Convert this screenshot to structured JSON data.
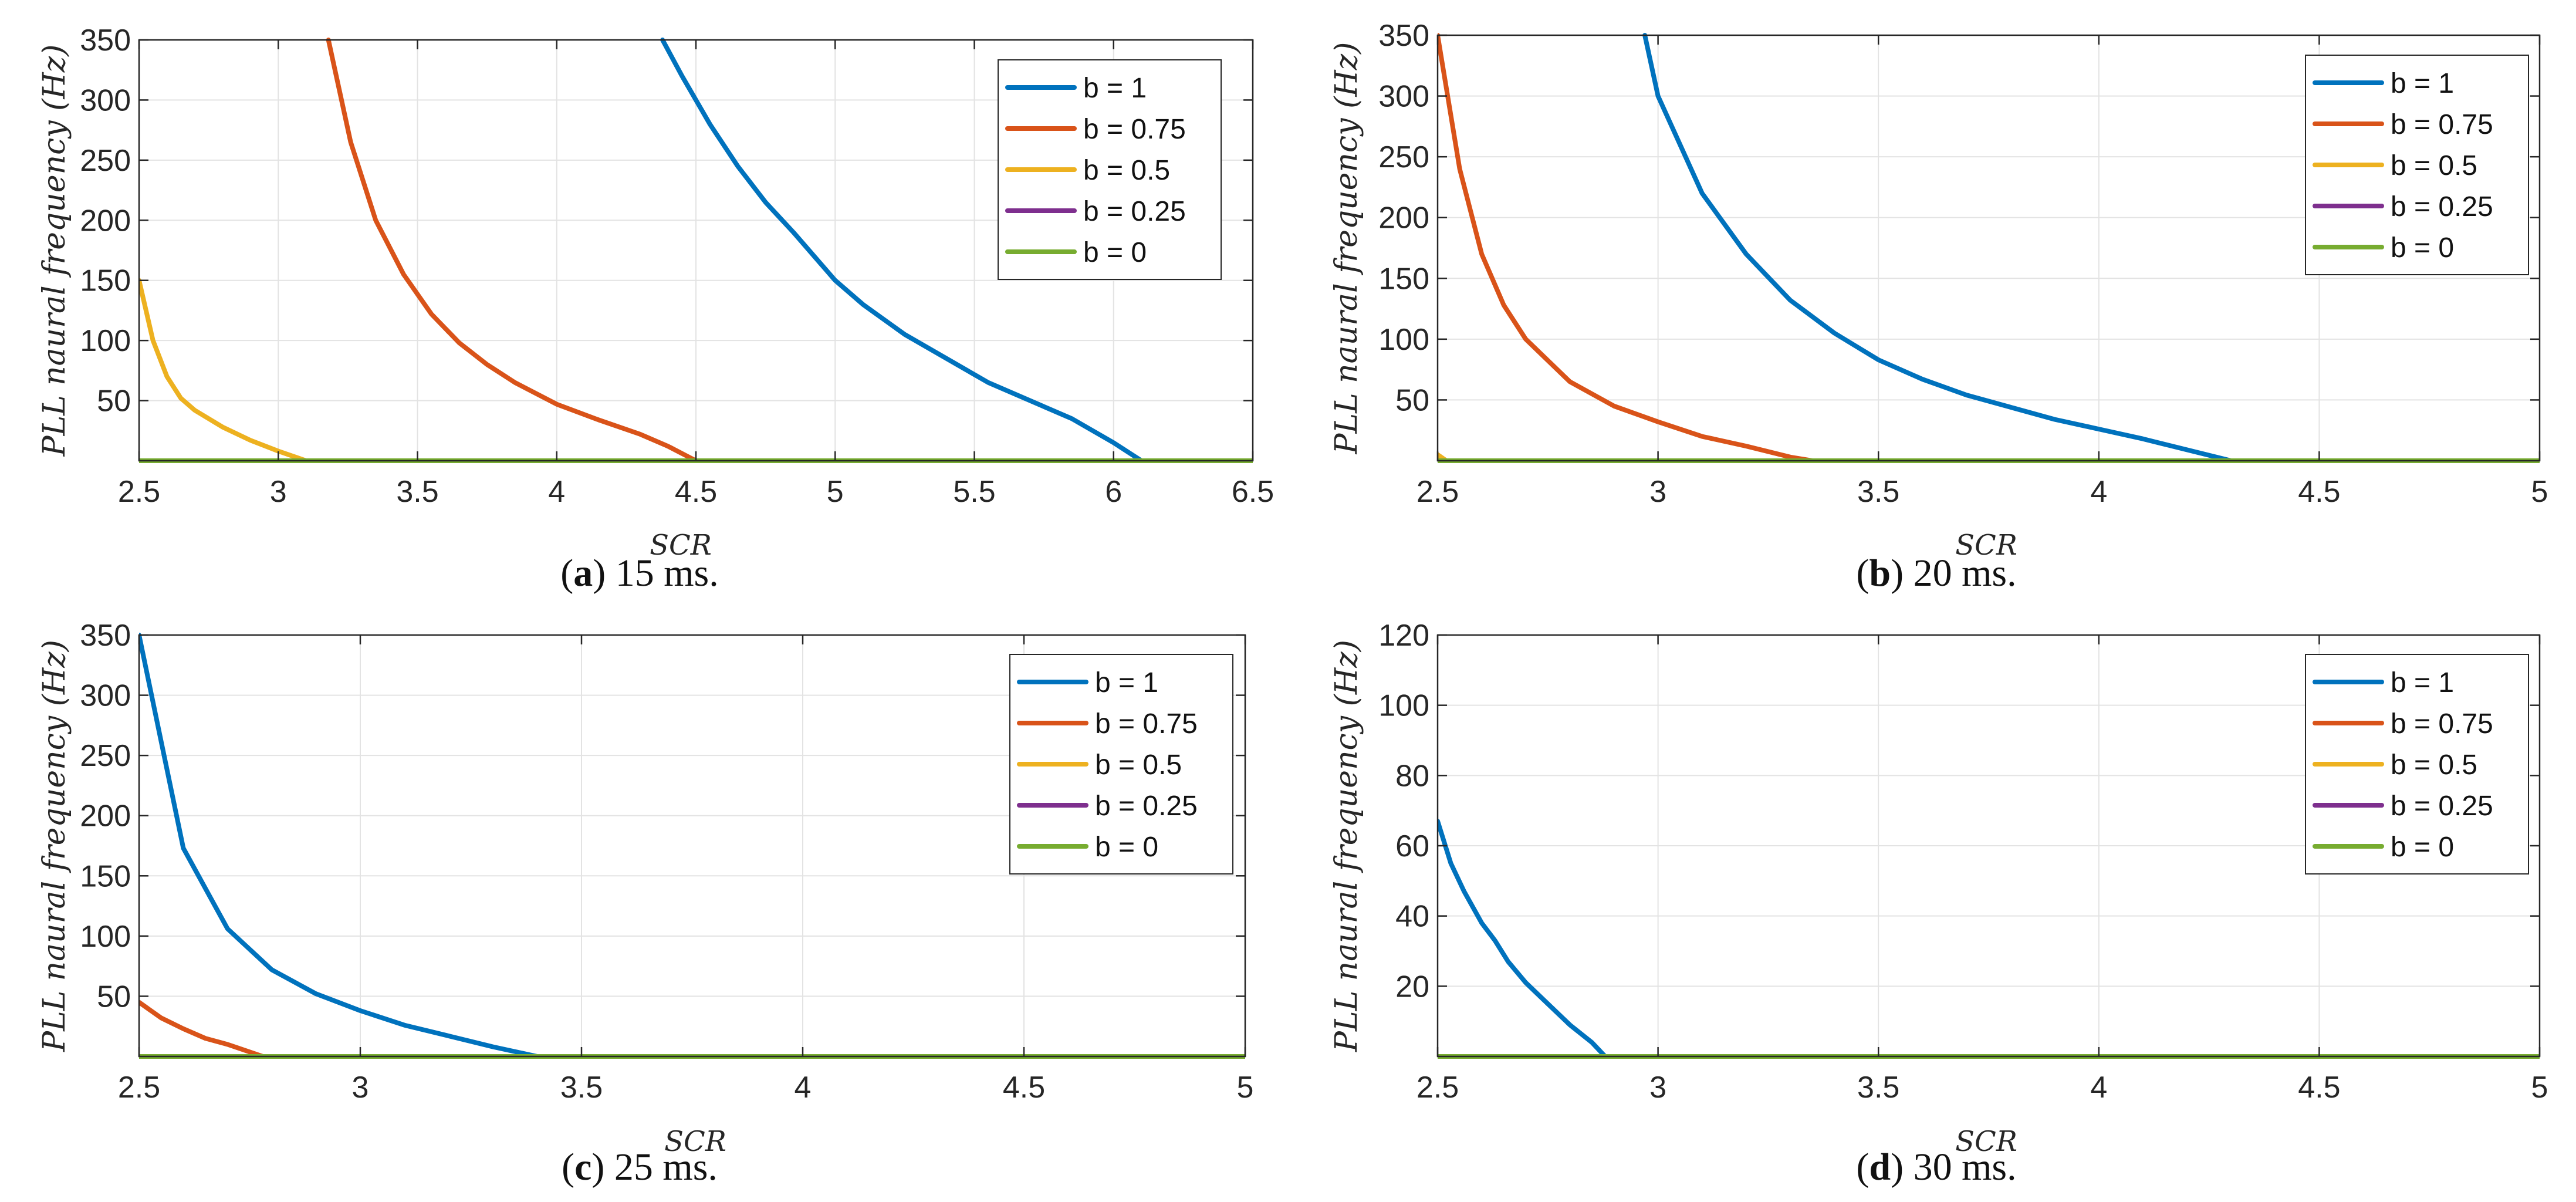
{
  "colors": {
    "b=1": "#0072BD",
    "b=0.75": "#D95319",
    "b=0.5": "#EDB120",
    "b=0.25": "#7E2F8E",
    "b=0": "#77AC30",
    "grid": "#e3e3e3",
    "axis": "#262626"
  },
  "chart_data": [
    {
      "type": "line",
      "panel_letter": "a",
      "caption": "15 ms.",
      "xlabel": "SCR",
      "ylabel": "PLL naural frequency (Hz)",
      "xlim": [
        2.5,
        6.5
      ],
      "ylim": [
        0,
        350
      ],
      "xticks": [
        2.5,
        3,
        3.5,
        4,
        4.5,
        5,
        5.5,
        6,
        6.5
      ],
      "xtick_labels": [
        "2.5",
        "3",
        "3.5",
        "4",
        "4.5",
        "5",
        "5.5",
        "6",
        "6.5"
      ],
      "yticks": [
        50,
        100,
        150,
        200,
        250,
        300,
        350
      ],
      "ytick_labels": [
        "50",
        "100",
        "150",
        "200",
        "250",
        "300",
        "350"
      ],
      "grid": true,
      "legend_position": "top-right",
      "series": [
        {
          "name": "b = 1",
          "color_key": "b=1",
          "x": [
            4.38,
            4.45,
            4.55,
            4.65,
            4.75,
            4.85,
            5.0,
            5.1,
            5.25,
            5.4,
            5.55,
            5.7,
            5.85,
            6.0,
            6.1
          ],
          "y": [
            350,
            320,
            280,
            245,
            215,
            190,
            150,
            130,
            105,
            85,
            65,
            50,
            35,
            15,
            0
          ]
        },
        {
          "name": "b = 0.75",
          "color_key": "b=0.75",
          "x": [
            3.18,
            3.26,
            3.35,
            3.45,
            3.55,
            3.65,
            3.75,
            3.85,
            4.0,
            4.15,
            4.3,
            4.4,
            4.5
          ],
          "y": [
            350,
            265,
            200,
            155,
            122,
            98,
            80,
            65,
            47,
            34,
            22,
            12,
            0
          ]
        },
        {
          "name": "b = 0.5",
          "color_key": "b=0.5",
          "x": [
            2.5,
            2.55,
            2.6,
            2.65,
            2.7,
            2.8,
            2.9,
            3.0,
            3.1
          ],
          "y": [
            150,
            100,
            70,
            52,
            42,
            28,
            17,
            8,
            0
          ]
        },
        {
          "name": "b = 0.25",
          "color_key": "b=0.25",
          "x": [
            2.5,
            6.5
          ],
          "y": [
            0,
            0
          ]
        },
        {
          "name": "b = 0",
          "color_key": "b=0",
          "x": [
            2.5,
            6.5
          ],
          "y": [
            0,
            0
          ]
        }
      ]
    },
    {
      "type": "line",
      "panel_letter": "b",
      "caption": "20 ms.",
      "xlabel": "SCR",
      "ylabel": "PLL naural frequency (Hz)",
      "xlim": [
        2.5,
        5
      ],
      "ylim": [
        0,
        350
      ],
      "xticks": [
        2.5,
        3,
        3.5,
        4,
        4.5,
        5
      ],
      "xtick_labels": [
        "2.5",
        "3",
        "3.5",
        "4",
        "4.5",
        "5"
      ],
      "yticks": [
        50,
        100,
        150,
        200,
        250,
        300,
        350
      ],
      "ytick_labels": [
        "50",
        "100",
        "150",
        "200",
        "250",
        "300",
        "350"
      ],
      "grid": true,
      "legend_position": "top-right",
      "series": [
        {
          "name": "b = 1",
          "color_key": "b=1",
          "x": [
            2.97,
            3.0,
            3.1,
            3.2,
            3.3,
            3.4,
            3.5,
            3.6,
            3.7,
            3.8,
            3.9,
            4.0,
            4.1,
            4.2,
            4.3
          ],
          "y": [
            350,
            300,
            220,
            170,
            132,
            105,
            83,
            67,
            54,
            44,
            34,
            26,
            18,
            9,
            0
          ]
        },
        {
          "name": "b = 0.75",
          "color_key": "b=0.75",
          "x": [
            2.5,
            2.55,
            2.6,
            2.65,
            2.7,
            2.8,
            2.9,
            3.0,
            3.1,
            3.2,
            3.3,
            3.35
          ],
          "y": [
            350,
            240,
            170,
            128,
            100,
            65,
            45,
            32,
            20,
            12,
            3,
            0
          ]
        },
        {
          "name": "b = 0.5",
          "color_key": "b=0.5",
          "x": [
            2.5,
            2.52
          ],
          "y": [
            5,
            0
          ]
        },
        {
          "name": "b = 0.25",
          "color_key": "b=0.25",
          "x": [
            2.5,
            5
          ],
          "y": [
            0,
            0
          ]
        },
        {
          "name": "b = 0",
          "color_key": "b=0",
          "x": [
            2.5,
            5
          ],
          "y": [
            0,
            0
          ]
        }
      ]
    },
    {
      "type": "line",
      "panel_letter": "c",
      "caption": "25 ms.",
      "xlabel": "SCR",
      "ylabel": "PLL naural frequency (Hz)",
      "xlim": [
        2.5,
        5
      ],
      "ylim": [
        0,
        350
      ],
      "xticks": [
        2.5,
        3,
        3.5,
        4,
        4.5,
        5
      ],
      "xtick_labels": [
        "2.5",
        "3",
        "3.5",
        "4",
        "4.5",
        "5"
      ],
      "yticks": [
        50,
        100,
        150,
        200,
        250,
        300,
        350
      ],
      "ytick_labels": [
        "50",
        "100",
        "150",
        "200",
        "250",
        "300",
        "350"
      ],
      "grid": true,
      "legend_position": "top-right",
      "series": [
        {
          "name": "b = 1",
          "color_key": "b=1",
          "x": [
            2.5,
            2.6,
            2.7,
            2.8,
            2.9,
            3.0,
            3.1,
            3.2,
            3.3,
            3.4
          ],
          "y": [
            350,
            173,
            106,
            72,
            52,
            38,
            26,
            17,
            8,
            0
          ]
        },
        {
          "name": "b = 0.75",
          "color_key": "b=0.75",
          "x": [
            2.5,
            2.55,
            2.6,
            2.65,
            2.7,
            2.78
          ],
          "y": [
            45,
            32,
            23,
            15,
            10,
            0
          ]
        },
        {
          "name": "b = 0.5",
          "color_key": "b=0.5",
          "x": [
            2.5,
            5
          ],
          "y": [
            0,
            0
          ]
        },
        {
          "name": "b = 0.25",
          "color_key": "b=0.25",
          "x": [
            2.5,
            5
          ],
          "y": [
            0,
            0
          ]
        },
        {
          "name": "b = 0",
          "color_key": "b=0",
          "x": [
            2.5,
            5
          ],
          "y": [
            0,
            0
          ]
        }
      ]
    },
    {
      "type": "line",
      "panel_letter": "d",
      "caption": "30 ms.",
      "xlabel": "SCR",
      "ylabel": "PLL naural frequency (Hz)",
      "xlim": [
        2.5,
        5
      ],
      "ylim": [
        0,
        120
      ],
      "xticks": [
        2.5,
        3,
        3.5,
        4,
        4.5,
        5
      ],
      "xtick_labels": [
        "2.5",
        "3",
        "3.5",
        "4",
        "4.5",
        "5"
      ],
      "yticks": [
        20,
        40,
        60,
        80,
        100,
        120
      ],
      "ytick_labels": [
        "20",
        "40",
        "60",
        "80",
        "100",
        "120"
      ],
      "grid": true,
      "legend_position": "top-right",
      "series": [
        {
          "name": "b = 1",
          "color_key": "b=1",
          "x": [
            2.5,
            2.53,
            2.56,
            2.6,
            2.63,
            2.66,
            2.7,
            2.75,
            2.8,
            2.85,
            2.88
          ],
          "y": [
            67,
            55,
            47,
            38,
            33,
            27,
            21,
            15,
            9,
            4,
            0
          ]
        },
        {
          "name": "b = 0.75",
          "color_key": "b=0.75",
          "x": [
            2.5,
            5
          ],
          "y": [
            0,
            0
          ]
        },
        {
          "name": "b = 0.5",
          "color_key": "b=0.5",
          "x": [
            2.5,
            5
          ],
          "y": [
            0,
            0
          ]
        },
        {
          "name": "b = 0.25",
          "color_key": "b=0.25",
          "x": [
            2.5,
            5
          ],
          "y": [
            0,
            0
          ]
        },
        {
          "name": "b = 0",
          "color_key": "b=0",
          "x": [
            2.5,
            5
          ],
          "y": [
            0,
            0
          ]
        }
      ]
    }
  ]
}
